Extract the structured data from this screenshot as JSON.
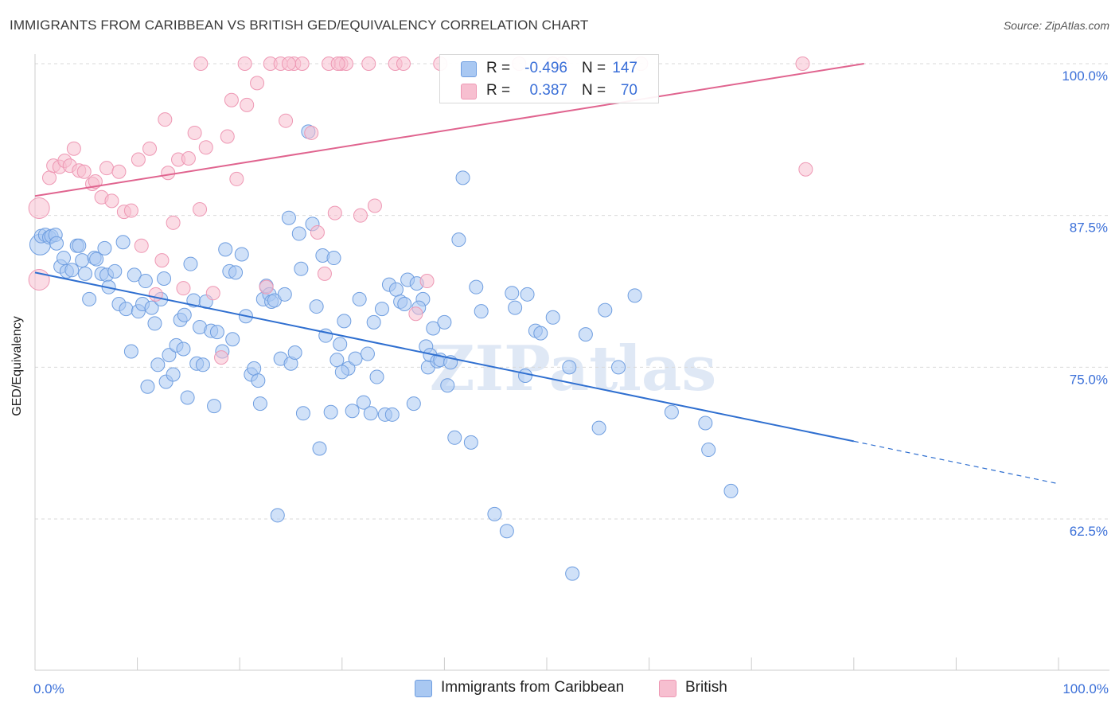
{
  "title": "IMMIGRANTS FROM CARIBBEAN VS BRITISH GED/EQUIVALENCY CORRELATION CHART",
  "source": "Source: ZipAtlas.com",
  "watermark": "ZIPatlas",
  "colors": {
    "blue_fill": "#a9c8f2",
    "blue_stroke": "#6f9ee0",
    "blue_line": "#2f6fd0",
    "pink_fill": "#f7bfd0",
    "pink_stroke": "#ee98b4",
    "pink_line": "#e0648f",
    "tick_text": "#3a6fd8",
    "grid": "#d9d9d9"
  },
  "legend": {
    "blue": {
      "r_label": "R =",
      "r_value": "-0.496",
      "n_label": "N =",
      "n_value": "147"
    },
    "pink": {
      "r_label": "R =",
      "r_value": "0.387",
      "n_label": "N =",
      "n_value": "70"
    }
  },
  "chart_data": {
    "type": "scatter",
    "ylabel": "GED/Equivalency",
    "xlim": [
      0,
      100
    ],
    "ylim": [
      52,
      101
    ],
    "x_tick_labels": [
      {
        "value": 0,
        "label": "0.0%"
      },
      {
        "value": 100,
        "label": "100.0%"
      }
    ],
    "y_ticks": [
      {
        "value": 100,
        "label": "100.0%"
      },
      {
        "value": 87.5,
        "label": "87.5%"
      },
      {
        "value": 75,
        "label": "75.0%"
      },
      {
        "value": 62.5,
        "label": "62.5%"
      }
    ],
    "legend_position": "bottom",
    "series": [
      {
        "name": "Immigrants from Caribbean",
        "color": "blue",
        "r": -0.496,
        "n": 147,
        "trend": {
          "x0": 0,
          "y0": 82.8,
          "x1": 80,
          "y1": 68.9,
          "dash_to_x": 100,
          "dash_to_y": 65.4
        },
        "points": [
          [
            0.5,
            85.1
          ],
          [
            0.6,
            85.8
          ],
          [
            1.0,
            85.9
          ],
          [
            1.4,
            85.7
          ],
          [
            1.6,
            85.8
          ],
          [
            2.0,
            85.9
          ],
          [
            2.1,
            85.2
          ],
          [
            2.5,
            83.3
          ],
          [
            2.8,
            84.0
          ],
          [
            3.1,
            82.9
          ],
          [
            3.6,
            83.0
          ],
          [
            4.1,
            85.0
          ],
          [
            4.3,
            85.0
          ],
          [
            4.6,
            83.8
          ],
          [
            4.9,
            82.7
          ],
          [
            5.3,
            80.6
          ],
          [
            5.8,
            84.0
          ],
          [
            6.0,
            83.9
          ],
          [
            6.8,
            84.8
          ],
          [
            6.5,
            82.7
          ],
          [
            7.0,
            82.6
          ],
          [
            7.2,
            81.6
          ],
          [
            7.8,
            82.9
          ],
          [
            8.2,
            80.2
          ],
          [
            8.6,
            85.3
          ],
          [
            8.9,
            79.8
          ],
          [
            9.4,
            76.3
          ],
          [
            9.7,
            82.6
          ],
          [
            10.1,
            79.6
          ],
          [
            10.5,
            80.2
          ],
          [
            10.8,
            82.1
          ],
          [
            11.0,
            73.4
          ],
          [
            11.4,
            79.9
          ],
          [
            11.7,
            78.6
          ],
          [
            12.0,
            75.2
          ],
          [
            12.3,
            80.6
          ],
          [
            12.6,
            82.3
          ],
          [
            12.8,
            73.8
          ],
          [
            13.1,
            76.0
          ],
          [
            13.5,
            74.4
          ],
          [
            13.8,
            76.8
          ],
          [
            14.2,
            78.9
          ],
          [
            14.6,
            79.3
          ],
          [
            14.9,
            72.5
          ],
          [
            15.2,
            83.5
          ],
          [
            15.5,
            80.5
          ],
          [
            15.8,
            75.3
          ],
          [
            16.1,
            78.3
          ],
          [
            16.4,
            75.2
          ],
          [
            16.7,
            80.4
          ],
          [
            17.2,
            78.0
          ],
          [
            17.5,
            71.8
          ],
          [
            17.8,
            77.9
          ],
          [
            18.3,
            76.3
          ],
          [
            18.6,
            84.7
          ],
          [
            19.0,
            82.9
          ],
          [
            19.3,
            77.3
          ],
          [
            19.6,
            82.8
          ],
          [
            20.2,
            84.3
          ],
          [
            20.6,
            79.2
          ],
          [
            21.1,
            74.4
          ],
          [
            21.4,
            74.9
          ],
          [
            21.8,
            73.9
          ],
          [
            22.3,
            80.6
          ],
          [
            22.6,
            81.7
          ],
          [
            22.9,
            81.0
          ],
          [
            23.1,
            80.4
          ],
          [
            23.4,
            80.5
          ],
          [
            23.7,
            62.8
          ],
          [
            24.0,
            75.7
          ],
          [
            24.4,
            81.0
          ],
          [
            24.8,
            87.3
          ],
          [
            25.0,
            75.3
          ],
          [
            25.4,
            76.2
          ],
          [
            25.8,
            86.0
          ],
          [
            26.0,
            83.1
          ],
          [
            26.2,
            71.2
          ],
          [
            26.7,
            94.4
          ],
          [
            27.1,
            86.8
          ],
          [
            27.5,
            80.0
          ],
          [
            27.8,
            68.3
          ],
          [
            28.1,
            84.2
          ],
          [
            28.4,
            77.6
          ],
          [
            28.9,
            71.3
          ],
          [
            29.2,
            84.0
          ],
          [
            29.5,
            75.6
          ],
          [
            29.8,
            76.9
          ],
          [
            30.2,
            78.8
          ],
          [
            30.6,
            74.9
          ],
          [
            31.0,
            71.4
          ],
          [
            31.3,
            75.7
          ],
          [
            31.7,
            80.6
          ],
          [
            32.1,
            72.1
          ],
          [
            32.5,
            76.1
          ],
          [
            32.8,
            71.2
          ],
          [
            33.1,
            78.7
          ],
          [
            33.4,
            74.2
          ],
          [
            33.9,
            79.8
          ],
          [
            34.2,
            71.1
          ],
          [
            34.6,
            81.8
          ],
          [
            34.9,
            71.1
          ],
          [
            35.3,
            81.4
          ],
          [
            35.7,
            80.4
          ],
          [
            36.1,
            80.2
          ],
          [
            36.4,
            82.2
          ],
          [
            37.0,
            72.0
          ],
          [
            37.3,
            81.9
          ],
          [
            37.9,
            80.6
          ],
          [
            38.2,
            76.7
          ],
          [
            38.4,
            75.0
          ],
          [
            38.6,
            76.0
          ],
          [
            38.9,
            78.2
          ],
          [
            39.3,
            75.5
          ],
          [
            39.6,
            75.6
          ],
          [
            40.0,
            78.7
          ],
          [
            40.3,
            73.5
          ],
          [
            40.6,
            75.4
          ],
          [
            41.0,
            69.2
          ],
          [
            41.4,
            85.5
          ],
          [
            41.8,
            90.6
          ],
          [
            42.6,
            68.8
          ],
          [
            43.1,
            81.6
          ],
          [
            43.6,
            79.6
          ],
          [
            44.9,
            62.9
          ],
          [
            46.1,
            61.5
          ],
          [
            46.6,
            81.1
          ],
          [
            46.9,
            79.9
          ],
          [
            47.9,
            74.3
          ],
          [
            48.1,
            81.0
          ],
          [
            48.9,
            78.0
          ],
          [
            49.4,
            77.8
          ],
          [
            50.6,
            79.1
          ],
          [
            52.2,
            75.0
          ],
          [
            52.5,
            58.0
          ],
          [
            53.8,
            77.7
          ],
          [
            55.1,
            70.0
          ],
          [
            55.7,
            79.7
          ],
          [
            57.0,
            75.0
          ],
          [
            58.6,
            80.9
          ],
          [
            62.2,
            71.3
          ],
          [
            65.5,
            70.4
          ],
          [
            65.8,
            68.2
          ],
          [
            68.0,
            64.8
          ],
          [
            14.5,
            76.5
          ],
          [
            22.0,
            72.0
          ],
          [
            30.0,
            74.6
          ],
          [
            37.5,
            79.9
          ]
        ]
      },
      {
        "name": "British",
        "color": "pink",
        "r": 0.387,
        "n": 70,
        "trend": {
          "x0": 0,
          "y0": 89.1,
          "x1": 81,
          "y1": 100.0
        },
        "points": [
          [
            0.4,
            88.1
          ],
          [
            0.4,
            82.2
          ],
          [
            1.4,
            90.6
          ],
          [
            1.8,
            91.6
          ],
          [
            2.4,
            91.5
          ],
          [
            2.9,
            92.0
          ],
          [
            3.4,
            91.6
          ],
          [
            3.8,
            93.0
          ],
          [
            4.3,
            91.2
          ],
          [
            4.8,
            91.1
          ],
          [
            5.6,
            90.1
          ],
          [
            5.9,
            90.3
          ],
          [
            6.5,
            89.0
          ],
          [
            7.0,
            91.4
          ],
          [
            7.5,
            88.7
          ],
          [
            8.2,
            91.1
          ],
          [
            8.7,
            87.8
          ],
          [
            9.4,
            87.9
          ],
          [
            10.1,
            92.1
          ],
          [
            10.4,
            85.0
          ],
          [
            11.2,
            93.0
          ],
          [
            11.8,
            81.0
          ],
          [
            12.4,
            83.8
          ],
          [
            12.7,
            95.4
          ],
          [
            13.0,
            91.0
          ],
          [
            13.5,
            86.9
          ],
          [
            14.0,
            92.1
          ],
          [
            14.5,
            81.5
          ],
          [
            15.0,
            92.2
          ],
          [
            15.6,
            94.3
          ],
          [
            16.1,
            88.0
          ],
          [
            16.7,
            93.1
          ],
          [
            17.4,
            81.1
          ],
          [
            18.2,
            75.8
          ],
          [
            18.8,
            94.0
          ],
          [
            19.2,
            97.0
          ],
          [
            19.7,
            90.5
          ],
          [
            20.7,
            96.6
          ],
          [
            21.7,
            98.4
          ],
          [
            22.6,
            81.6
          ],
          [
            23.0,
            100.0
          ],
          [
            24.0,
            100.0
          ],
          [
            24.5,
            95.3
          ],
          [
            25.3,
            100.0
          ],
          [
            26.1,
            100.0
          ],
          [
            27.0,
            94.3
          ],
          [
            27.6,
            86.1
          ],
          [
            28.3,
            82.7
          ],
          [
            28.7,
            100.0
          ],
          [
            29.3,
            87.7
          ],
          [
            29.9,
            100.0
          ],
          [
            30.4,
            100.0
          ],
          [
            31.8,
            87.5
          ],
          [
            32.6,
            100.0
          ],
          [
            33.2,
            88.3
          ],
          [
            35.2,
            100.0
          ],
          [
            37.2,
            79.4
          ],
          [
            38.3,
            82.1
          ],
          [
            39.6,
            100.0
          ],
          [
            47.3,
            100.0
          ],
          [
            51.5,
            100.0
          ],
          [
            59.2,
            100.0
          ],
          [
            75.0,
            100.0
          ],
          [
            75.3,
            91.3
          ],
          [
            16.2,
            100.0
          ],
          [
            20.5,
            100.0
          ],
          [
            24.8,
            100.0
          ],
          [
            29.6,
            100.0
          ],
          [
            36.0,
            100.0
          ],
          [
            50.6,
            100.0
          ]
        ]
      }
    ]
  }
}
